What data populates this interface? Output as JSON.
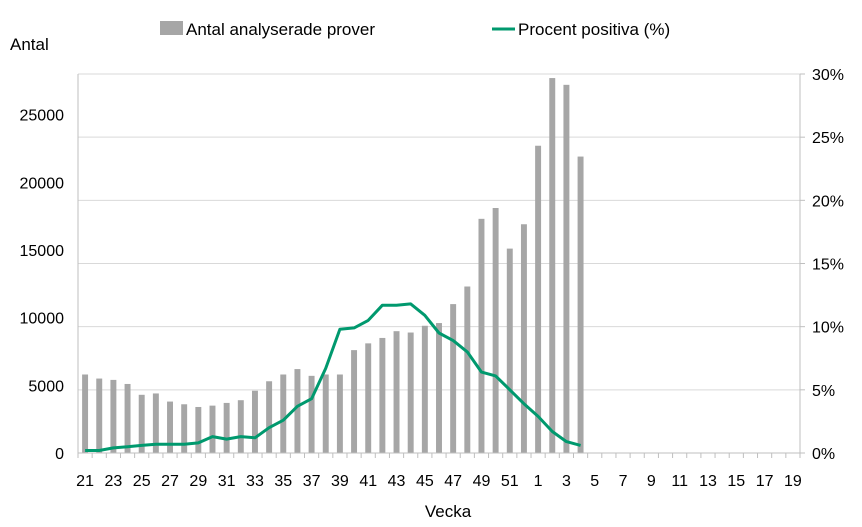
{
  "chart_data": {
    "type": "bar",
    "xlabel": "Vecka",
    "ylabel_left": "Antal",
    "ylim_left": [
      0,
      28000
    ],
    "yticks_left": [
      0,
      5000,
      10000,
      15000,
      20000,
      25000
    ],
    "ylim_right": [
      0,
      30
    ],
    "yticks_right": [
      "0%",
      "5%",
      "10%",
      "15%",
      "20%",
      "25%",
      "30%"
    ],
    "grid": true,
    "legend_position": "top",
    "categories": [
      "21",
      "22",
      "23",
      "24",
      "25",
      "26",
      "27",
      "28",
      "29",
      "30",
      "31",
      "32",
      "33",
      "34",
      "35",
      "36",
      "37",
      "38",
      "39",
      "40",
      "41",
      "42",
      "43",
      "44",
      "45",
      "46",
      "47",
      "48",
      "49",
      "50",
      "51",
      "52",
      "1",
      "2",
      "3",
      "4",
      "5",
      "6",
      "7",
      "8",
      "9",
      "10",
      "11",
      "12",
      "13",
      "14",
      "15",
      "16",
      "17",
      "18",
      "19"
    ],
    "x_tick_labels": [
      "21",
      "23",
      "25",
      "27",
      "29",
      "31",
      "33",
      "35",
      "37",
      "39",
      "41",
      "43",
      "45",
      "47",
      "49",
      "51",
      "1",
      "3",
      "5",
      "7",
      "9",
      "11",
      "13",
      "15",
      "17",
      "19"
    ],
    "series": [
      {
        "name": "Antal analyserade prover",
        "kind": "bar",
        "axis": "left",
        "color": "#a6a6a6",
        "values": [
          5800,
          5500,
          5400,
          5100,
          4300,
          4400,
          3800,
          3600,
          3400,
          3500,
          3700,
          3900,
          4600,
          5300,
          5800,
          6200,
          5700,
          5800,
          5800,
          7600,
          8100,
          8500,
          9000,
          8900,
          9400,
          9600,
          11000,
          12300,
          17300,
          18100,
          15100,
          16900,
          22700,
          27700,
          27200,
          21900,
          null,
          null,
          null,
          null,
          null,
          null,
          null,
          null,
          null,
          null,
          null,
          null,
          null,
          null,
          null
        ]
      },
      {
        "name": "Procent positiva (%)",
        "kind": "line",
        "axis": "right",
        "color": "#00996e",
        "values": [
          0.2,
          0.2,
          0.4,
          0.5,
          0.6,
          0.7,
          0.7,
          0.7,
          0.8,
          1.3,
          1.1,
          1.3,
          1.2,
          2.0,
          2.6,
          3.7,
          4.3,
          6.7,
          9.8,
          9.9,
          10.5,
          11.7,
          11.7,
          11.8,
          10.9,
          9.5,
          8.9,
          8.0,
          6.4,
          6.1,
          5.0,
          3.9,
          2.9,
          1.7,
          0.9,
          0.6,
          null,
          null,
          null,
          null,
          null,
          null,
          null,
          null,
          null,
          null,
          null,
          null,
          null,
          null,
          null
        ]
      }
    ]
  }
}
